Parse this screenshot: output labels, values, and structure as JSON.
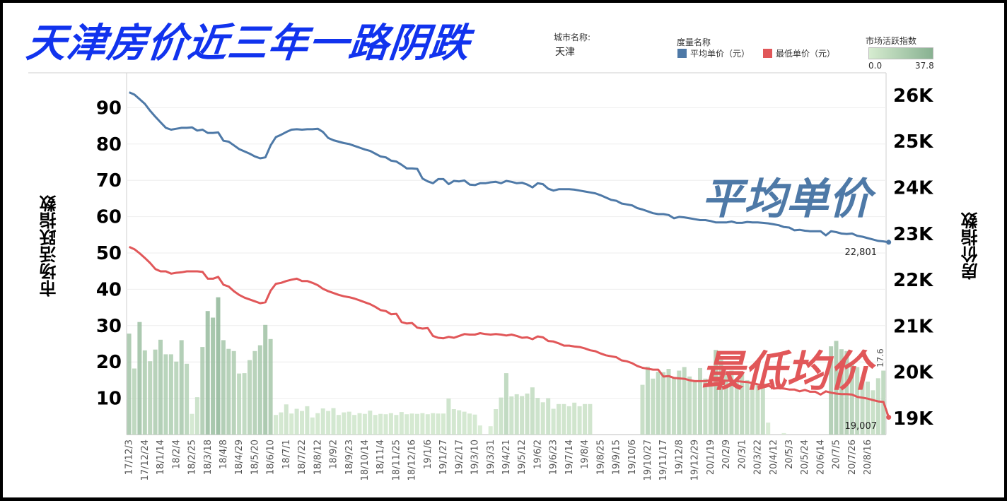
{
  "title": "天津房价近三年一路阴跌",
  "filters": {
    "city_label": "城市名称:",
    "city_value": "天津"
  },
  "legend": {
    "measure_title": "度量名称",
    "items": [
      {
        "label": "平均单价（元）",
        "color": "#4e79a7"
      },
      {
        "label": "最低单价（元）",
        "color": "#e15759"
      }
    ],
    "activity_title": "市场活跃指数",
    "activity_min": "0.0",
    "activity_max": "37.8",
    "activity_color_min": "#d6ecd0",
    "activity_color_max": "#88b191"
  },
  "annotations": {
    "avg_label": "平均单价",
    "min_label": "最低均价",
    "avg_last": "22,801",
    "min_last": "19,007",
    "bar_last": "17.6"
  },
  "chart_data": {
    "type": "bar+line",
    "title": "天津房价近三年一路阴跌",
    "xlabel": "",
    "ylabel_left": "市场活跃指数",
    "ylabel_right": "房价指数",
    "left_axis": {
      "ticks": [
        10,
        20,
        30,
        40,
        50,
        60,
        70,
        80,
        90
      ],
      "range": [
        0,
        98
      ]
    },
    "right_axis": {
      "ticks": [
        "19K",
        "20K",
        "21K",
        "22K",
        "23K",
        "24K",
        "25K",
        "26K"
      ],
      "range": [
        18800,
        26300
      ]
    },
    "x_tick_labels": [
      "17/12/3",
      "17/12/24",
      "18/1/14",
      "18/2/4",
      "18/2/25",
      "18/3/18",
      "18/4/8",
      "18/4/29",
      "18/5/20",
      "18/6/10",
      "18/7/1",
      "18/7/22",
      "18/8/12",
      "18/9/2",
      "18/9/23",
      "18/10/14",
      "18/11/4",
      "18/11/25",
      "18/12/16",
      "19/1/6",
      "19/1/27",
      "19/2/17",
      "19/3/10",
      "19/3/31",
      "19/4/21",
      "19/5/12",
      "19/6/2",
      "19/6/23",
      "19/7/14",
      "19/8/4",
      "19/8/25",
      "19/9/15",
      "19/10/6",
      "19/10/27",
      "19/11/17",
      "19/12/8",
      "19/12/29",
      "20/1/19",
      "20/2/9",
      "20/3/1",
      "20/3/22",
      "20/4/12",
      "20/5/3",
      "20/5/24",
      "20/6/14",
      "20/7/5",
      "20/7/26",
      "20/8/16"
    ],
    "grid": true,
    "series": [
      {
        "name": "市场活跃指数",
        "type": "bar",
        "axis": "left",
        "values": [
          27.8,
          18.2,
          31.0,
          23.2,
          20.2,
          23.4,
          26.1,
          22.1,
          22.1,
          20.1,
          26.0,
          19.5,
          5.7,
          10.3,
          24.1,
          34.0,
          32.2,
          37.8,
          26.0,
          23.6,
          23.0,
          16.8,
          16.9,
          20.5,
          23.0,
          24.6,
          30.2,
          26.3,
          5.4,
          6.1,
          8.3,
          5.8,
          7.1,
          6.5,
          7.8,
          4.7,
          5.9,
          7.2,
          6.5,
          7.3,
          5.4,
          6.1,
          6.3,
          5.4,
          5.9,
          5.7,
          6.6,
          5.4,
          5.7,
          5.6,
          5.9,
          5.4,
          6.2,
          5.6,
          5.8,
          5.7,
          5.9,
          5.6,
          5.9,
          5.8,
          5.8,
          9.9,
          7.0,
          6.7,
          6.3,
          5.8,
          5.5,
          2.5,
          0,
          2.3,
          7.0,
          10.2,
          16.9,
          10.5,
          11.1,
          10.6,
          11.3,
          13.0,
          10.1,
          8.9,
          10.0,
          7.1,
          8.4,
          8.4,
          7.8,
          8.8,
          7.8,
          8.4,
          8.4,
          0,
          0,
          0,
          0,
          0,
          0,
          0,
          0,
          0,
          13.7,
          18.7,
          15.4,
          17.3,
          17.2,
          18.1,
          15.5,
          17.6,
          18.6,
          16.0,
          15.0,
          18.3,
          15.4,
          14.4,
          23.3,
          20.6,
          17.2,
          17.6,
          14.9,
          17.2,
          15.0,
          14.1,
          13.6,
          14.1,
          3.3,
          0,
          0,
          0.4,
          0,
          0,
          0,
          0,
          0,
          0,
          0,
          0,
          24.3,
          25.8,
          23.5,
          23.0,
          20.0,
          18.6,
          15.8,
          14.6,
          12.2,
          15.5,
          17.6
        ],
        "color_min": "#d6ecd0",
        "color_max": "#88b191"
      },
      {
        "name": "平均单价（元）",
        "type": "line",
        "axis": "right",
        "color": "#4e79a7",
        "values": [
          26050,
          26000,
          25900,
          25800,
          25650,
          25520,
          25400,
          25280,
          25240,
          25260,
          25280,
          25280,
          25290,
          25220,
          25240,
          25170,
          25170,
          25180,
          25000,
          24980,
          24900,
          24820,
          24770,
          24720,
          24660,
          24620,
          24640,
          24900,
          25080,
          25130,
          25190,
          25240,
          25250,
          25240,
          25250,
          25250,
          25260,
          25190,
          25060,
          25010,
          24980,
          24950,
          24930,
          24890,
          24850,
          24810,
          24780,
          24720,
          24660,
          24640,
          24570,
          24550,
          24480,
          24400,
          24400,
          24390,
          24180,
          24120,
          24080,
          24170,
          24170,
          24060,
          24130,
          24120,
          24140,
          24050,
          24040,
          24080,
          24080,
          24100,
          24110,
          24080,
          24130,
          24110,
          24080,
          24090,
          24050,
          23990,
          24080,
          24060,
          23960,
          23920,
          23950,
          23950,
          23950,
          23940,
          23920,
          23900,
          23880,
          23860,
          23820,
          23770,
          23720,
          23700,
          23640,
          23620,
          23600,
          23540,
          23510,
          23470,
          23430,
          23410,
          23410,
          23390,
          23320,
          23350,
          23340,
          23320,
          23300,
          23280,
          23280,
          23260,
          23230,
          23230,
          23230,
          23250,
          23220,
          23220,
          23240,
          23230,
          23230,
          23220,
          23210,
          23190,
          23170,
          23130,
          23120,
          23060,
          23070,
          23050,
          23040,
          23040,
          23040,
          22950,
          23040,
          23020,
          22990,
          22980,
          22990,
          22940,
          22920,
          22890,
          22860,
          22830,
          22820,
          22801
        ]
      },
      {
        "name": "最低单价（元）",
        "type": "line",
        "axis": "right",
        "color": "#e15759",
        "values": [
          22700,
          22650,
          22560,
          22460,
          22350,
          22220,
          22170,
          22170,
          22120,
          22140,
          22150,
          22170,
          22170,
          22170,
          22160,
          22010,
          22010,
          22050,
          21880,
          21840,
          21740,
          21660,
          21600,
          21560,
          21520,
          21480,
          21500,
          21750,
          21900,
          21920,
          21960,
          21990,
          22010,
          21960,
          21960,
          21920,
          21870,
          21790,
          21740,
          21700,
          21660,
          21630,
          21610,
          21580,
          21540,
          21500,
          21460,
          21400,
          21330,
          21310,
          21240,
          21250,
          21070,
          21040,
          21050,
          20950,
          20930,
          20940,
          20770,
          20730,
          20720,
          20750,
          20730,
          20770,
          20810,
          20800,
          20800,
          20830,
          20810,
          20800,
          20810,
          20800,
          20780,
          20800,
          20770,
          20730,
          20740,
          20700,
          20760,
          20740,
          20660,
          20650,
          20610,
          20560,
          20560,
          20540,
          20530,
          20500,
          20460,
          20440,
          20390,
          20350,
          20330,
          20310,
          20240,
          20220,
          20180,
          20120,
          20080,
          20060,
          20040,
          20040,
          19890,
          19900,
          19860,
          19850,
          19840,
          19810,
          19790,
          19790,
          19790,
          19810,
          19800,
          19810,
          19800,
          19800,
          19790,
          19780,
          19770,
          19750,
          19720,
          19700,
          19700,
          19630,
          19640,
          19630,
          19610,
          19610,
          19570,
          19600,
          19560,
          19560,
          19500,
          19570,
          19540,
          19520,
          19510,
          19510,
          19500,
          19450,
          19430,
          19410,
          19380,
          19350,
          19340,
          19007
        ]
      }
    ]
  }
}
